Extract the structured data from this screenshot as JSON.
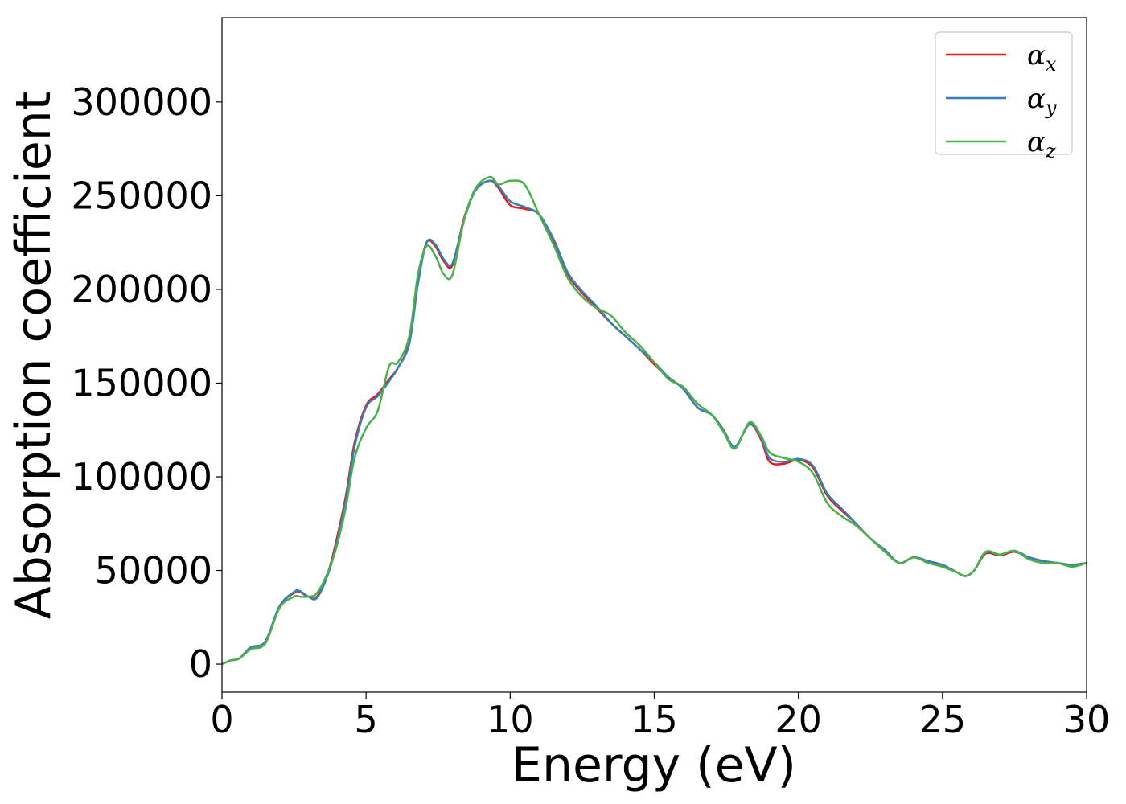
{
  "chart_data": {
    "type": "line",
    "title": "",
    "xlabel": "Energy (eV)",
    "ylabel": "Absorption coefficient",
    "xlim": [
      0,
      30
    ],
    "ylim": [
      -15000,
      345000
    ],
    "xticks": [
      0,
      5,
      10,
      15,
      20,
      25,
      30
    ],
    "yticks": [
      0,
      50000,
      100000,
      150000,
      200000,
      250000,
      300000
    ],
    "grid": false,
    "legend_position": "top-right",
    "series": [
      {
        "name": "αx",
        "symbol": "α",
        "subscript": "x",
        "color": "#e41a1c",
        "x": [
          0,
          0.3,
          0.6,
          1.0,
          1.5,
          2.0,
          2.5,
          2.7,
          3.0,
          3.3,
          3.7,
          4.0,
          4.3,
          4.6,
          5.0,
          5.4,
          5.8,
          6.1,
          6.5,
          6.8,
          7.1,
          7.4,
          7.7,
          8.0,
          8.4,
          8.8,
          9.3,
          9.6,
          10.0,
          10.5,
          11.0,
          11.5,
          12.0,
          12.5,
          13.0,
          13.5,
          14.0,
          14.5,
          15.0,
          15.5,
          16.0,
          16.5,
          17.0,
          17.4,
          17.8,
          18.3,
          18.7,
          19.0,
          19.5,
          20.0,
          20.5,
          21.0,
          21.5,
          22.0,
          22.5,
          23.0,
          23.5,
          24.0,
          24.5,
          25.0,
          25.5,
          25.8,
          26.1,
          26.5,
          27.0,
          27.5,
          28.0,
          28.5,
          29.0,
          29.5,
          30.0
        ],
        "y": [
          0,
          2000,
          3000,
          9000,
          12000,
          31000,
          38000,
          38500,
          36000,
          36000,
          50000,
          68000,
          90000,
          118000,
          138000,
          144000,
          152000,
          158000,
          172000,
          205000,
          225000,
          223000,
          215000,
          213000,
          238000,
          253000,
          258000,
          254000,
          245000,
          243000,
          240000,
          226000,
          208000,
          198000,
          190000,
          182000,
          175000,
          168000,
          160000,
          153000,
          147000,
          137000,
          133000,
          125000,
          116000,
          128000,
          120000,
          108000,
          107000,
          109000,
          105000,
          90000,
          82000,
          75000,
          67000,
          61000,
          54000,
          57000,
          55000,
          53000,
          49000,
          47000,
          50000,
          59000,
          58000,
          60000,
          57000,
          55000,
          54000,
          53000,
          54000
        ]
      },
      {
        "name": "αy",
        "symbol": "α",
        "subscript": "y",
        "color": "#377eb8",
        "x": [
          0,
          0.3,
          0.6,
          1.0,
          1.5,
          2.0,
          2.5,
          2.7,
          3.0,
          3.3,
          3.7,
          4.0,
          4.3,
          4.6,
          5.0,
          5.4,
          5.8,
          6.1,
          6.5,
          6.8,
          7.1,
          7.4,
          7.7,
          8.0,
          8.4,
          8.8,
          9.3,
          9.6,
          10.0,
          10.5,
          11.0,
          11.5,
          12.0,
          12.5,
          13.0,
          13.5,
          14.0,
          14.5,
          15.0,
          15.5,
          16.0,
          16.5,
          17.0,
          17.4,
          17.8,
          18.3,
          18.7,
          19.0,
          19.5,
          20.0,
          20.5,
          21.0,
          21.5,
          22.0,
          22.5,
          23.0,
          23.5,
          24.0,
          24.5,
          25.0,
          25.5,
          25.8,
          26.1,
          26.5,
          27.0,
          27.5,
          28.0,
          28.5,
          29.0,
          29.5,
          30.0
        ],
        "y": [
          0,
          2000,
          3000,
          9000,
          12000,
          31000,
          38500,
          39000,
          36000,
          35500,
          49000,
          66000,
          88000,
          116000,
          137000,
          143000,
          151000,
          158000,
          171000,
          203000,
          225000,
          224000,
          216000,
          214000,
          237000,
          253000,
          258000,
          255000,
          247000,
          244000,
          240000,
          227000,
          209000,
          199000,
          191000,
          182000,
          175000,
          168000,
          161000,
          153000,
          147000,
          137000,
          133000,
          125000,
          116000,
          128000,
          121000,
          110000,
          108000,
          109500,
          106000,
          91000,
          83000,
          75000,
          67000,
          61000,
          54000,
          57000,
          55000,
          53000,
          49000,
          47000,
          50000,
          59500,
          58500,
          60500,
          57000,
          55000,
          54000,
          53000,
          54000
        ]
      },
      {
        "name": "αz",
        "symbol": "α",
        "subscript": "z",
        "color": "#4daf4a",
        "x": [
          0,
          0.3,
          0.6,
          1.0,
          1.5,
          2.0,
          2.5,
          2.7,
          3.0,
          3.3,
          3.7,
          4.0,
          4.3,
          4.6,
          5.0,
          5.4,
          5.8,
          6.1,
          6.5,
          6.8,
          7.1,
          7.4,
          7.7,
          8.0,
          8.4,
          8.8,
          9.3,
          9.6,
          10.0,
          10.5,
          11.0,
          11.5,
          12.0,
          12.5,
          13.0,
          13.5,
          14.0,
          14.5,
          15.0,
          15.5,
          16.0,
          16.5,
          17.0,
          17.4,
          17.8,
          18.3,
          18.7,
          19.0,
          19.5,
          20.0,
          20.5,
          21.0,
          21.5,
          22.0,
          22.5,
          23.0,
          23.5,
          24.0,
          24.5,
          25.0,
          25.5,
          25.8,
          26.1,
          26.5,
          27.0,
          27.5,
          28.0,
          28.5,
          29.0,
          29.5,
          30.0
        ],
        "y": [
          0,
          2000,
          3000,
          8000,
          11000,
          30000,
          36000,
          36000,
          36000,
          38000,
          50000,
          64000,
          84000,
          110000,
          126000,
          135000,
          159000,
          161000,
          175000,
          208000,
          223000,
          218000,
          208000,
          208000,
          237000,
          254000,
          260000,
          256000,
          258000,
          256000,
          240000,
          224000,
          206000,
          196000,
          190000,
          186000,
          177000,
          170000,
          161000,
          152000,
          148000,
          139000,
          133000,
          124000,
          115000,
          129000,
          122000,
          113000,
          110000,
          108000,
          102000,
          86000,
          79000,
          74000,
          67000,
          60000,
          54000,
          57000,
          54000,
          52000,
          49000,
          47000,
          50000,
          60000,
          58500,
          60500,
          56000,
          54000,
          54000,
          52000,
          54000
        ]
      }
    ]
  }
}
